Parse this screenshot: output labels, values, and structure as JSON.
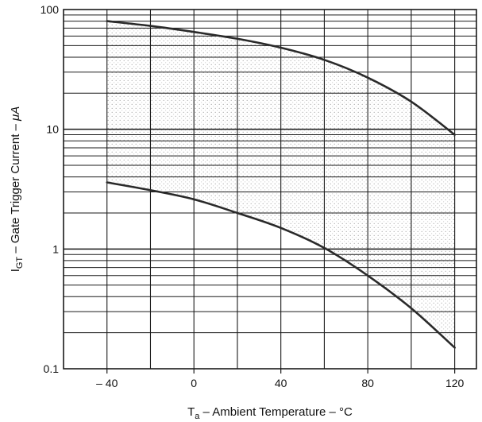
{
  "chart_data": {
    "type": "line",
    "title": "",
    "xlabel": {
      "main": "T",
      "sub": "a",
      "rest": " – Ambient Temperature – °C"
    },
    "ylabel": {
      "main": "I",
      "sub": "GT",
      "rest": " – Gate Trigger Current – ",
      "unit": "μA"
    },
    "xlim": [
      -60,
      130
    ],
    "ylim": [
      0.1,
      100
    ],
    "yscale": "log",
    "grid": true,
    "x_ticks": [
      -40,
      0,
      40,
      80,
      120
    ],
    "x_tick_labels": [
      "– 40",
      "0",
      "40",
      "80",
      "120"
    ],
    "y_ticks": [
      0.1,
      1,
      10,
      100
    ],
    "y_tick_labels": [
      "0.1",
      "1",
      "10",
      "100"
    ],
    "series": [
      {
        "x": [
          -40,
          -20,
          0,
          20,
          40,
          60,
          80,
          100,
          120
        ],
        "y": [
          80,
          73,
          65,
          57,
          48,
          38,
          27,
          17,
          9
        ]
      },
      {
        "x": [
          -40,
          -20,
          0,
          20,
          40,
          60,
          80,
          100,
          120
        ],
        "y": [
          3.6,
          3.1,
          2.6,
          2.0,
          1.5,
          1.02,
          0.6,
          0.32,
          0.15
        ]
      }
    ],
    "shaded_region_between_series": true,
    "colors": {
      "line": "#2a2a2a",
      "grid": "#1a1a1a",
      "shade": "#c8c8c8"
    }
  }
}
